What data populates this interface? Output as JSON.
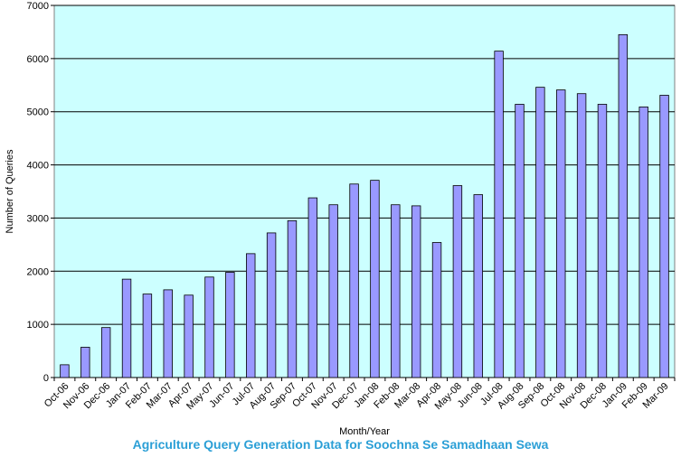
{
  "chart_data": {
    "type": "bar",
    "title": "",
    "caption": "Agriculture Query Generation Data for Soochna Se Samadhaan Sewa",
    "xlabel": "Month/Year",
    "ylabel": "Number of Queries",
    "ylim": [
      0,
      7000
    ],
    "yticks": [
      0,
      1000,
      2000,
      3000,
      4000,
      5000,
      6000,
      7000
    ],
    "grid": true,
    "legend": "none",
    "colors": {
      "plot_background": "#ccffff",
      "bar_fill": "#9999ff",
      "bar_stroke": "#000000",
      "gridline": "#000000",
      "caption": "#2b9fd6"
    },
    "categories": [
      "Oct-06",
      "Nov-06",
      "Dec-06",
      "Jan-07",
      "Feb-07",
      "Mar-07",
      "Apr-07",
      "May-07",
      "Jun-07",
      "Jul-07",
      "Aug-07",
      "Sep-07",
      "Oct-07",
      "Nov-07",
      "Dec-07",
      "Jan-08",
      "Feb-08",
      "Mar-08",
      "Apr-08",
      "May-08",
      "Jun-08",
      "Jul-08",
      "Aug-08",
      "Sep-08",
      "Oct-08",
      "Nov-08",
      "Dec-08",
      "Jan-09",
      "Feb-09",
      "Mar-09"
    ],
    "values": [
      240,
      570,
      940,
      1850,
      1570,
      1650,
      1550,
      1890,
      1980,
      2330,
      2720,
      2950,
      3380,
      3250,
      3640,
      3710,
      3250,
      3230,
      2540,
      3610,
      3440,
      6140,
      5140,
      5460,
      5410,
      5340,
      5140,
      6450,
      5090,
      5310
    ]
  }
}
